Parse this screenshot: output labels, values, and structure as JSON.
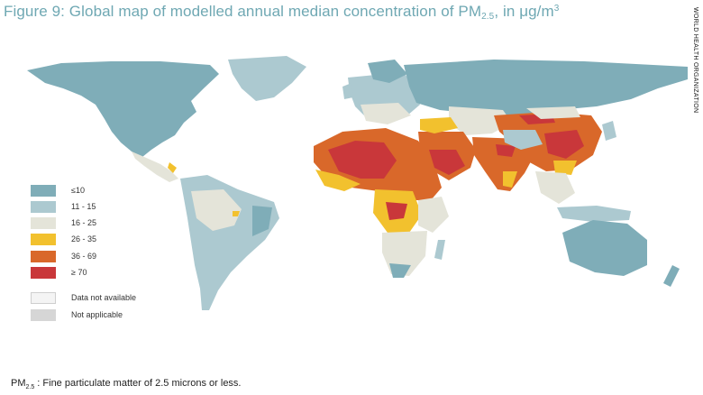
{
  "title": {
    "prefix": "Figure 9: Global map of modelled annual median concentration of PM",
    "sub": "2.5",
    "suffix": ", in μg/m",
    "sup": "3"
  },
  "side_label": "WORLD HEALTH ORGANIZATION",
  "legend": [
    {
      "label": "≤10",
      "color": "#7fadb8"
    },
    {
      "label": "11 - 15",
      "color": "#acc9d0"
    },
    {
      "label": "16 - 25",
      "color": "#e4e4d9"
    },
    {
      "label": "26 - 35",
      "color": "#f2c12e"
    },
    {
      "label": "36 - 69",
      "color": "#d9682a"
    },
    {
      "label": "≥ 70",
      "color": "#c9373a"
    },
    {
      "label": "Data not available",
      "color": "#f4f4f4"
    },
    {
      "label": "Not applicable",
      "color": "#d6d6d6"
    }
  ],
  "footnote": {
    "prefix": "PM",
    "sub": "2.5",
    "text": " : Fine particulate matter of 2.5 microns or less."
  }
}
